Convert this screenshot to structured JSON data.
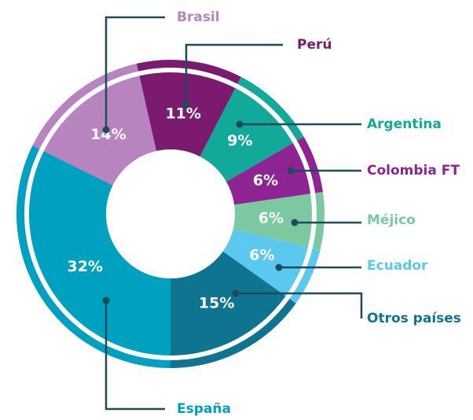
{
  "chart_data": {
    "type": "donut",
    "categories": [
      "Perú",
      "Argentina",
      "Colombia FT",
      "Méjico",
      "Ecuador",
      "Otros países",
      "España",
      "Brasil"
    ],
    "values": [
      11,
      9,
      6,
      6,
      6,
      15,
      32,
      14
    ],
    "value_labels": [
      "11%",
      "9%",
      "6%",
      "6%",
      "6%",
      "15%",
      "32%",
      "14%"
    ],
    "colors": [
      "#7b1a6e",
      "#12a89a",
      "#8e2494",
      "#7cc8a0",
      "#5bc8f0",
      "#0f7490",
      "#00a0c0",
      "#b884bf"
    ]
  }
}
